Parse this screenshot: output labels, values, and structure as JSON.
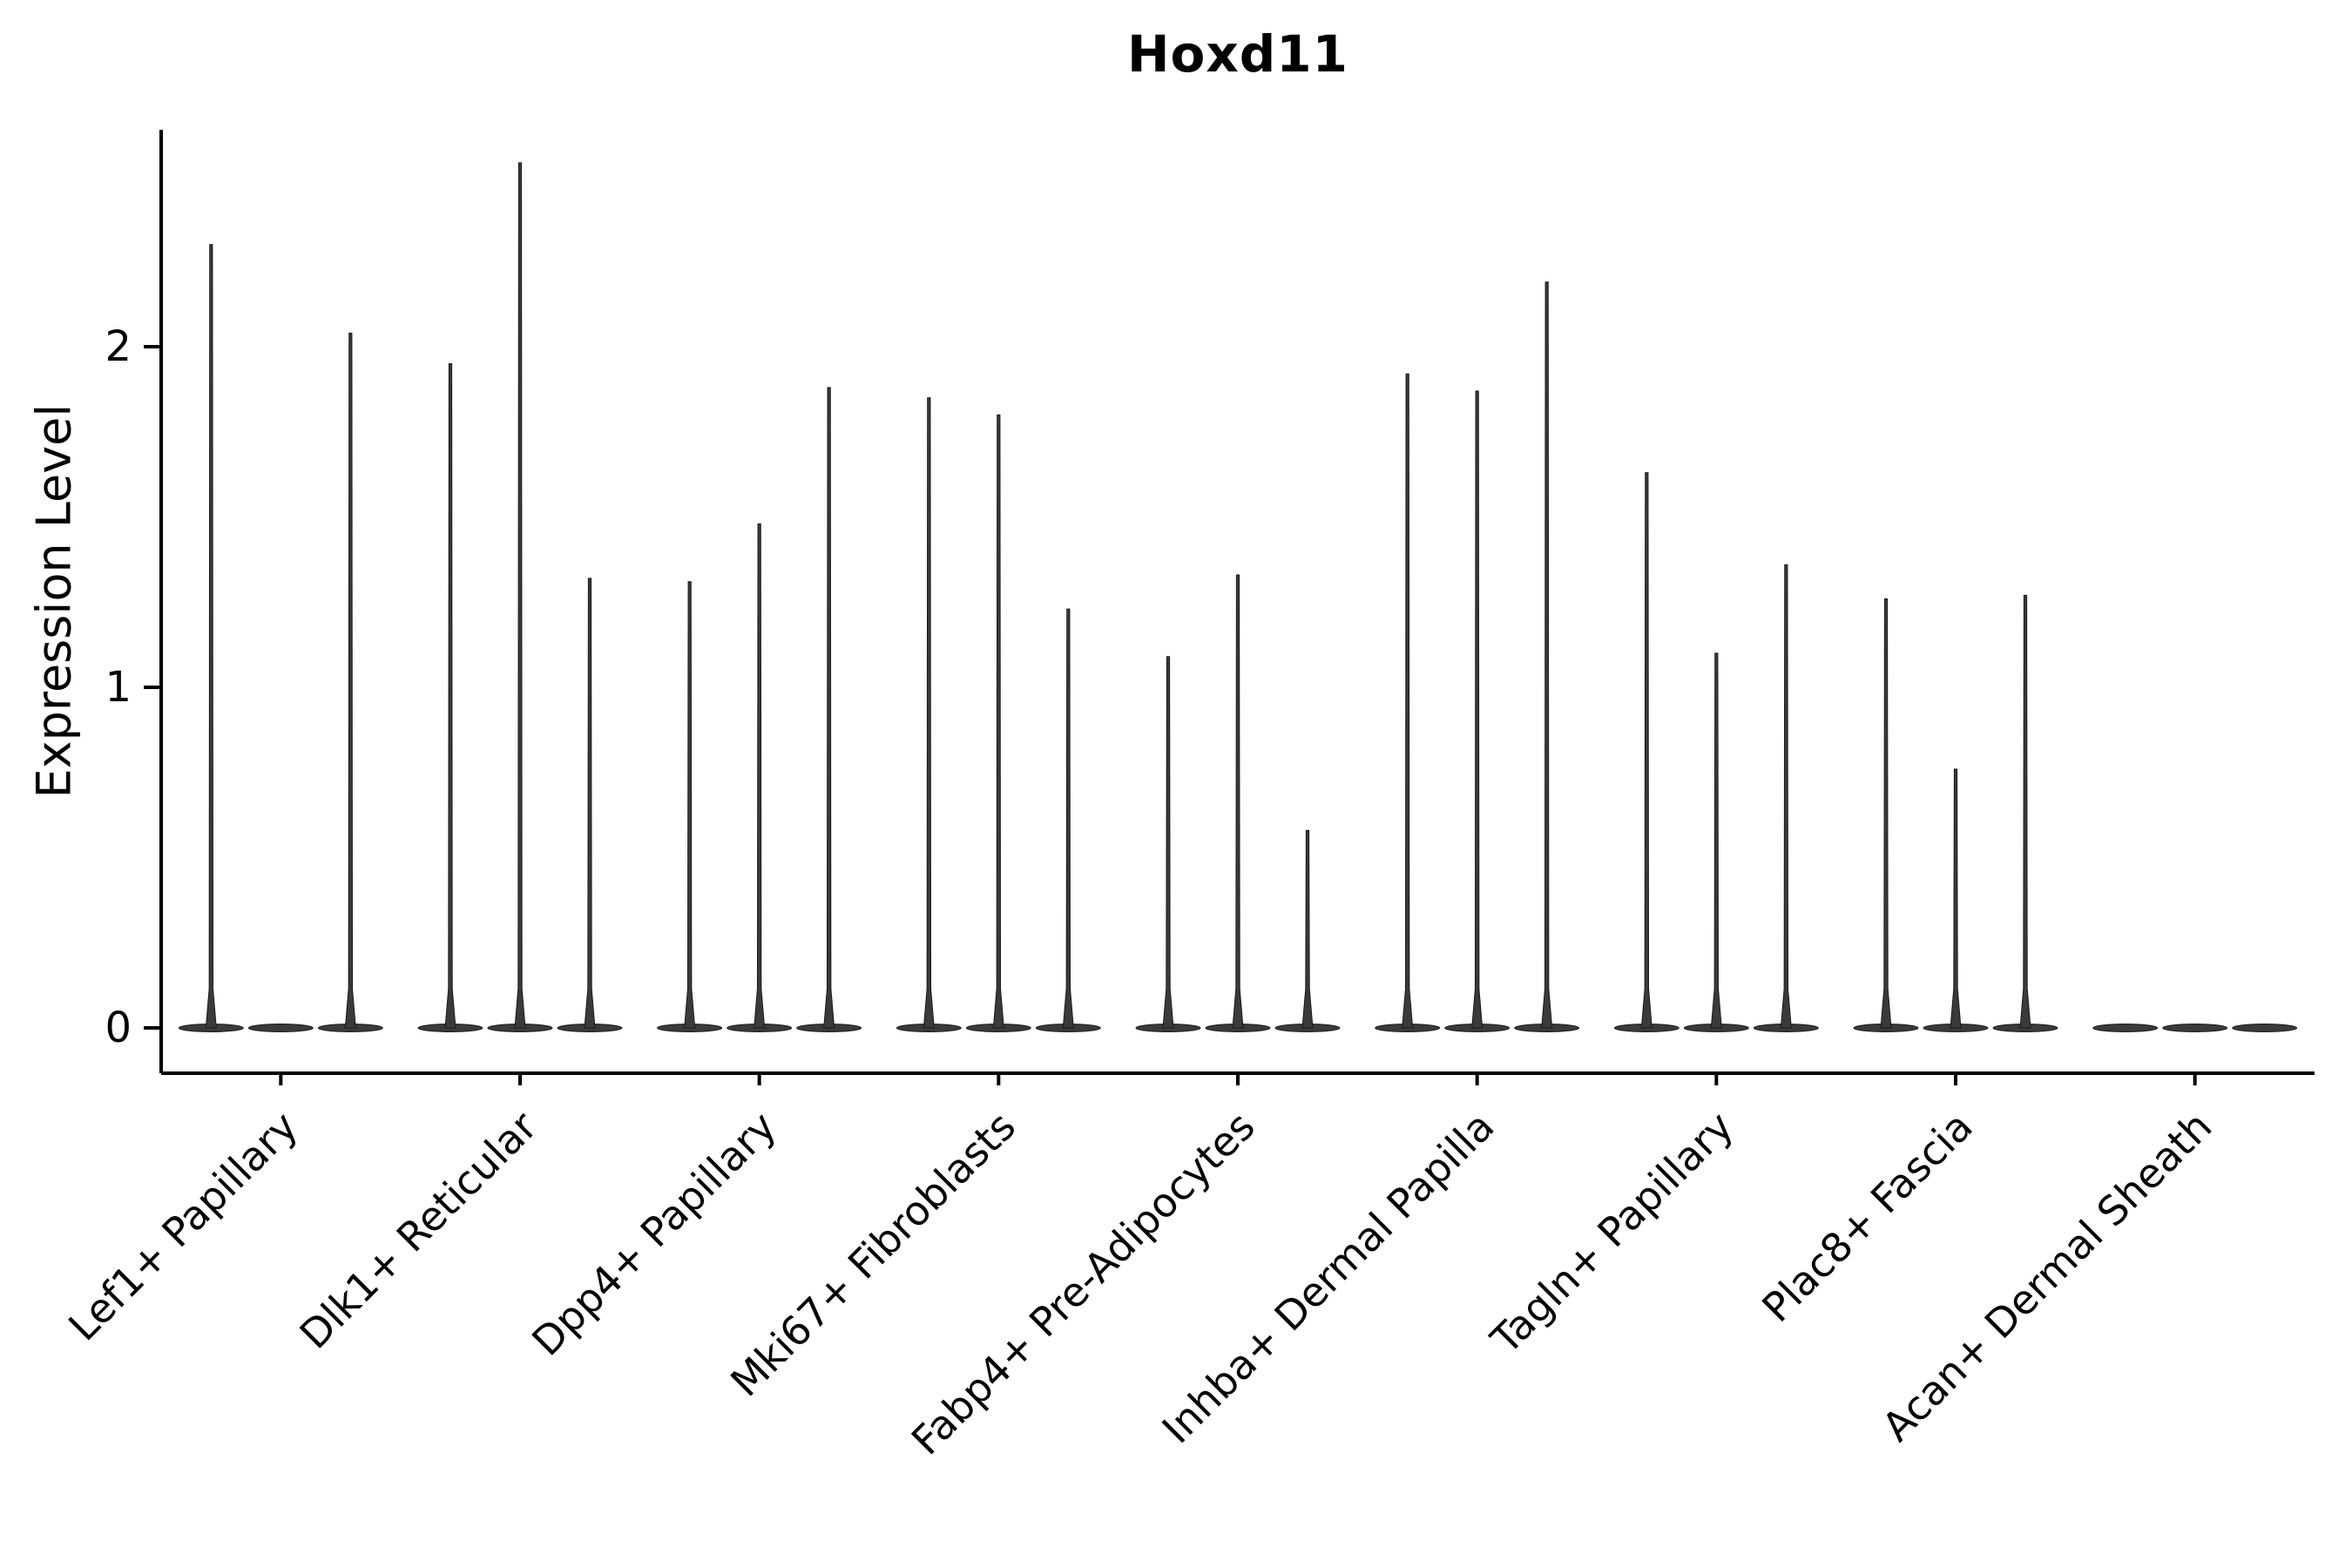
{
  "chart_data": {
    "type": "violin",
    "title": "Hoxd11",
    "xlabel": "",
    "ylabel": "Expression Level",
    "yticks": [
      0,
      1,
      2
    ],
    "ylim": [
      -0.15,
      2.65
    ],
    "legend": "none",
    "grid": false,
    "categories": [
      "Lef1+ Papillary",
      "Dlk1+ Reticular",
      "Dpp4+ Papillary",
      "Mki67+ Fibroblasts",
      "Fabp4+ Pre-Adipocytes",
      "Inhba+ Dermal Papilla",
      "Tagln+ Papillary",
      "Plac8+ Fascia",
      "Acan+ Dermal Sheath"
    ],
    "violins_per_category": 3,
    "spike_max_values": [
      [
        2.3,
        0.0,
        2.04
      ],
      [
        1.95,
        2.54,
        1.32
      ],
      [
        1.31,
        1.48,
        1.88
      ],
      [
        1.85,
        1.8,
        1.23
      ],
      [
        1.09,
        1.33,
        0.58
      ],
      [
        1.92,
        1.87,
        2.19
      ],
      [
        1.63,
        1.1,
        1.36
      ],
      [
        1.26,
        0.76,
        1.27
      ],
      [
        0.0,
        0.0,
        0.0
      ]
    ],
    "violin_color": "#3a3a3a",
    "violin_edge_color": "#1a1a1a",
    "axis_color": "#000000",
    "description": "Violin plot of gene expression; distributions concentrated at 0 with thin spikes reaching each sample's maximum expression level"
  }
}
